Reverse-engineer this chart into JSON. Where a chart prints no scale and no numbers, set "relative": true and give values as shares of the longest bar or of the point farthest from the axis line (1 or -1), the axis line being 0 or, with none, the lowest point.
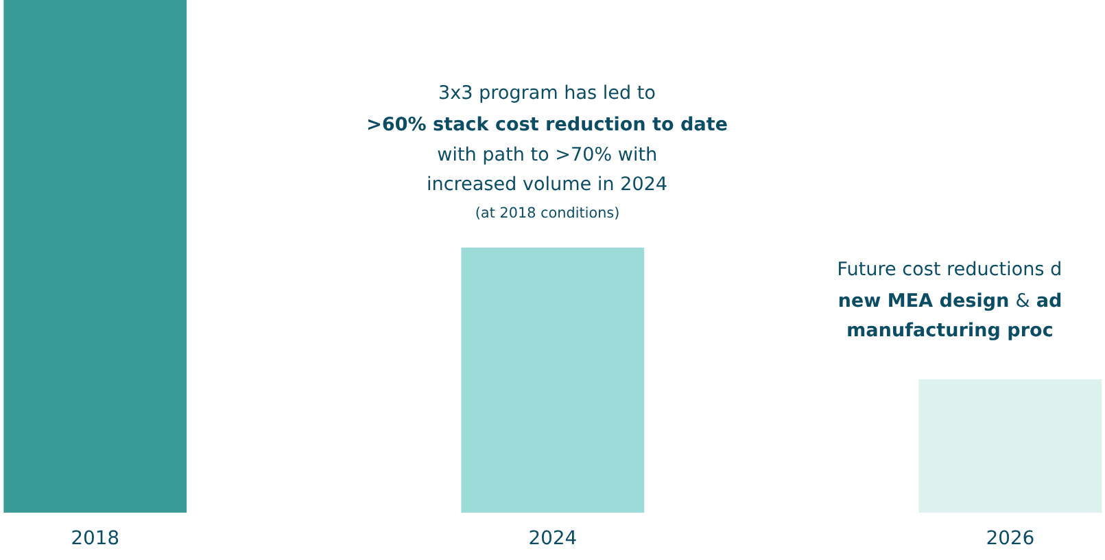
{
  "chart_data": {
    "type": "bar",
    "relative": true,
    "categories": [
      "2018",
      "2024",
      "2026"
    ],
    "values": [
      1,
      0.517,
      0.26
    ],
    "colors": [
      "#3a9b96",
      "#9ddbd8",
      "#ddf2ef"
    ],
    "grid": false,
    "legend": false,
    "annotations": [
      "3x3 program has led to",
      ">60% stack cost reduction to date",
      "with path to >70% with",
      "increased volume in 2024",
      "(at 2018 conditions)",
      "Future cost reductions d",
      "new MEA design",
      "&",
      "ad",
      "manufacturing proc"
    ]
  }
}
